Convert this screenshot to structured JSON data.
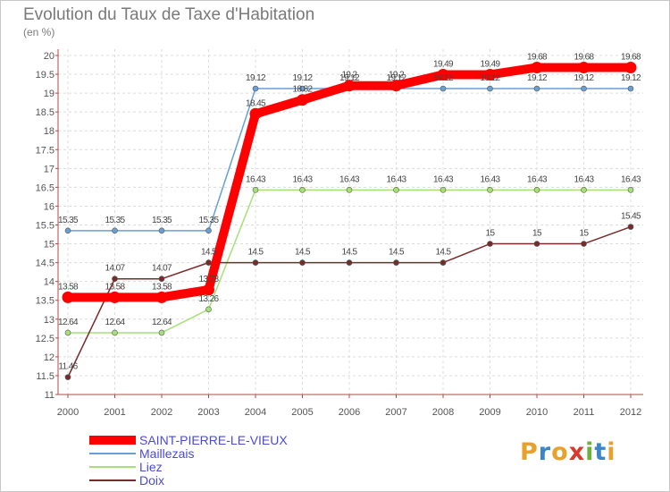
{
  "title": "Evolution du Taux de Taxe d'Habitation",
  "subtitle": "(en %)",
  "logo": {
    "letters": [
      "P",
      "r",
      "o",
      "x",
      "i",
      "t",
      "i"
    ],
    "colors": [
      "#e8a12c",
      "#3a86c8",
      "#e8a12c",
      "#d63b2f",
      "#6ab23e",
      "#3a86c8",
      "#e8a12c"
    ]
  },
  "chart_data": {
    "type": "line",
    "title": "Evolution du Taux de Taxe d'Habitation",
    "ylabel": "(en %)",
    "xlabel": "",
    "ylim": [
      11,
      20
    ],
    "yticks": [
      "11",
      "11.5",
      "12",
      "12.5",
      "13",
      "13.5",
      "14",
      "14.5",
      "15",
      "15.5",
      "16",
      "16.5",
      "17",
      "17.5",
      "18",
      "18.5",
      "19",
      "19.5",
      "20"
    ],
    "x": [
      "2000",
      "2001",
      "2002",
      "2003",
      "2004",
      "2005",
      "2006",
      "2007",
      "2008",
      "2009",
      "2010",
      "2011",
      "2012"
    ],
    "series": [
      {
        "name": "SAINT-PIERRE-LE-VIEUX",
        "color": "#ff0000",
        "values": [
          13.58,
          13.58,
          13.58,
          13.78,
          18.45,
          18.82,
          19.2,
          19.2,
          19.49,
          19.49,
          19.68,
          19.68,
          19.68
        ],
        "labels": [
          "13.58",
          "13.58",
          "13.58",
          "13.78",
          "18.45",
          "18.82",
          "19.2",
          "19.2",
          "19.49",
          "19.49",
          "19.68",
          "19.68",
          "19.68"
        ]
      },
      {
        "name": "Maillezais",
        "color": "#6a9fd4",
        "values": [
          15.35,
          15.35,
          15.35,
          15.35,
          19.12,
          19.12,
          19.12,
          19.12,
          19.12,
          19.12,
          19.12,
          19.12,
          19.12
        ],
        "labels": [
          "15.35",
          "15.35",
          "15.35",
          "15.35",
          "19.12",
          "19.12",
          "19.12",
          "19.12",
          "19.12",
          "19.12",
          "19.12",
          "19.12",
          "19.12"
        ]
      },
      {
        "name": "Liez",
        "color": "#a6e07a",
        "values": [
          12.64,
          12.64,
          12.64,
          13.26,
          16.43,
          16.43,
          16.43,
          16.43,
          16.43,
          16.43,
          16.43,
          16.43,
          16.43
        ],
        "labels": [
          "12.64",
          "12.64",
          "12.64",
          "13.26",
          "16.43",
          "16.43",
          "16.43",
          "16.43",
          "16.43",
          "16.43",
          "16.43",
          "16.43",
          "16.43"
        ]
      },
      {
        "name": "Doix",
        "color": "#7a2a2a",
        "values": [
          11.46,
          14.07,
          14.07,
          14.5,
          14.5,
          14.5,
          14.5,
          14.5,
          14.5,
          15,
          15,
          15,
          15.45
        ],
        "labels": [
          "11.46",
          "14.07",
          "14.07",
          "14.5",
          "14.5",
          "14.5",
          "14.5",
          "14.5",
          "14.5",
          "15",
          "15",
          "15",
          "15.45"
        ]
      }
    ],
    "legend_position": "bottom-left"
  }
}
